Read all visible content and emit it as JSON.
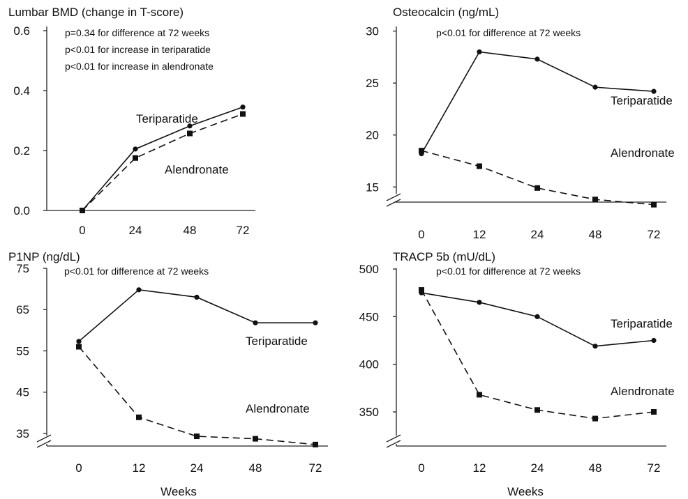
{
  "chart_data": [
    {
      "type": "line",
      "title": "Lumbar BMD (change in T-score)",
      "annotations": [
        "p=0.34 for difference at 72 weeks",
        "p<0.01 for increase in teriparatide",
        "p<0.01 for increase in alendronate"
      ],
      "categories": [
        "0",
        "24",
        "48",
        "72"
      ],
      "yticks": [
        "0.0",
        "0.2",
        "0.4",
        "0.6"
      ],
      "ylim": [
        0,
        0.6
      ],
      "axis_break": false,
      "xlabel": "",
      "series": [
        {
          "name": "Teriparatide",
          "values": [
            0,
            0.205,
            0.282,
            0.345
          ]
        },
        {
          "name": "Alendronate",
          "values": [
            0,
            0.175,
            0.257,
            0.322
          ]
        }
      ]
    },
    {
      "type": "line",
      "title": "Osteocalcin (ng/mL)",
      "annotations": [
        "p<0.01 for difference at 72 weeks"
      ],
      "categories": [
        "0",
        "12",
        "24",
        "48",
        "72"
      ],
      "yticks": [
        "15",
        "20",
        "25",
        "30"
      ],
      "ylim": [
        12.5,
        30
      ],
      "axis_break": true,
      "xlabel": "",
      "series": [
        {
          "name": "Teriparatide",
          "values": [
            18.2,
            28.0,
            27.3,
            24.6,
            24.2
          ]
        },
        {
          "name": "Alendronate",
          "values": [
            18.5,
            17.0,
            14.9,
            13.8,
            13.3
          ]
        }
      ]
    },
    {
      "type": "line",
      "title": "P1NP (ng/dL)",
      "annotations": [
        "p<0.01 for difference at 72 weeks"
      ],
      "categories": [
        "0",
        "12",
        "24",
        "48",
        "72"
      ],
      "yticks": [
        "35",
        "45",
        "55",
        "65",
        "75"
      ],
      "ylim": [
        30,
        75
      ],
      "axis_break": true,
      "xlabel": "Weeks",
      "series": [
        {
          "name": "Teriparatide",
          "values": [
            57.3,
            69.8,
            68.0,
            61.8,
            61.8
          ]
        },
        {
          "name": "Alendronate",
          "values": [
            56.0,
            38.9,
            34.3,
            33.7,
            32.3
          ]
        }
      ]
    },
    {
      "type": "line",
      "title": "TRACP 5b (mU/dL)",
      "annotations": [
        "p<0.01 for difference at 72 weeks"
      ],
      "categories": [
        "0",
        "12",
        "24",
        "48",
        "72"
      ],
      "yticks": [
        "350",
        "400",
        "450",
        "500"
      ],
      "ylim": [
        320,
        500
      ],
      "axis_break": true,
      "xlabel": "Weeks",
      "series": [
        {
          "name": "Teriparatide",
          "values": [
            475,
            465,
            450,
            419,
            425
          ]
        },
        {
          "name": "Alendronate",
          "values": [
            478,
            368,
            352,
            343,
            350
          ]
        }
      ]
    }
  ]
}
